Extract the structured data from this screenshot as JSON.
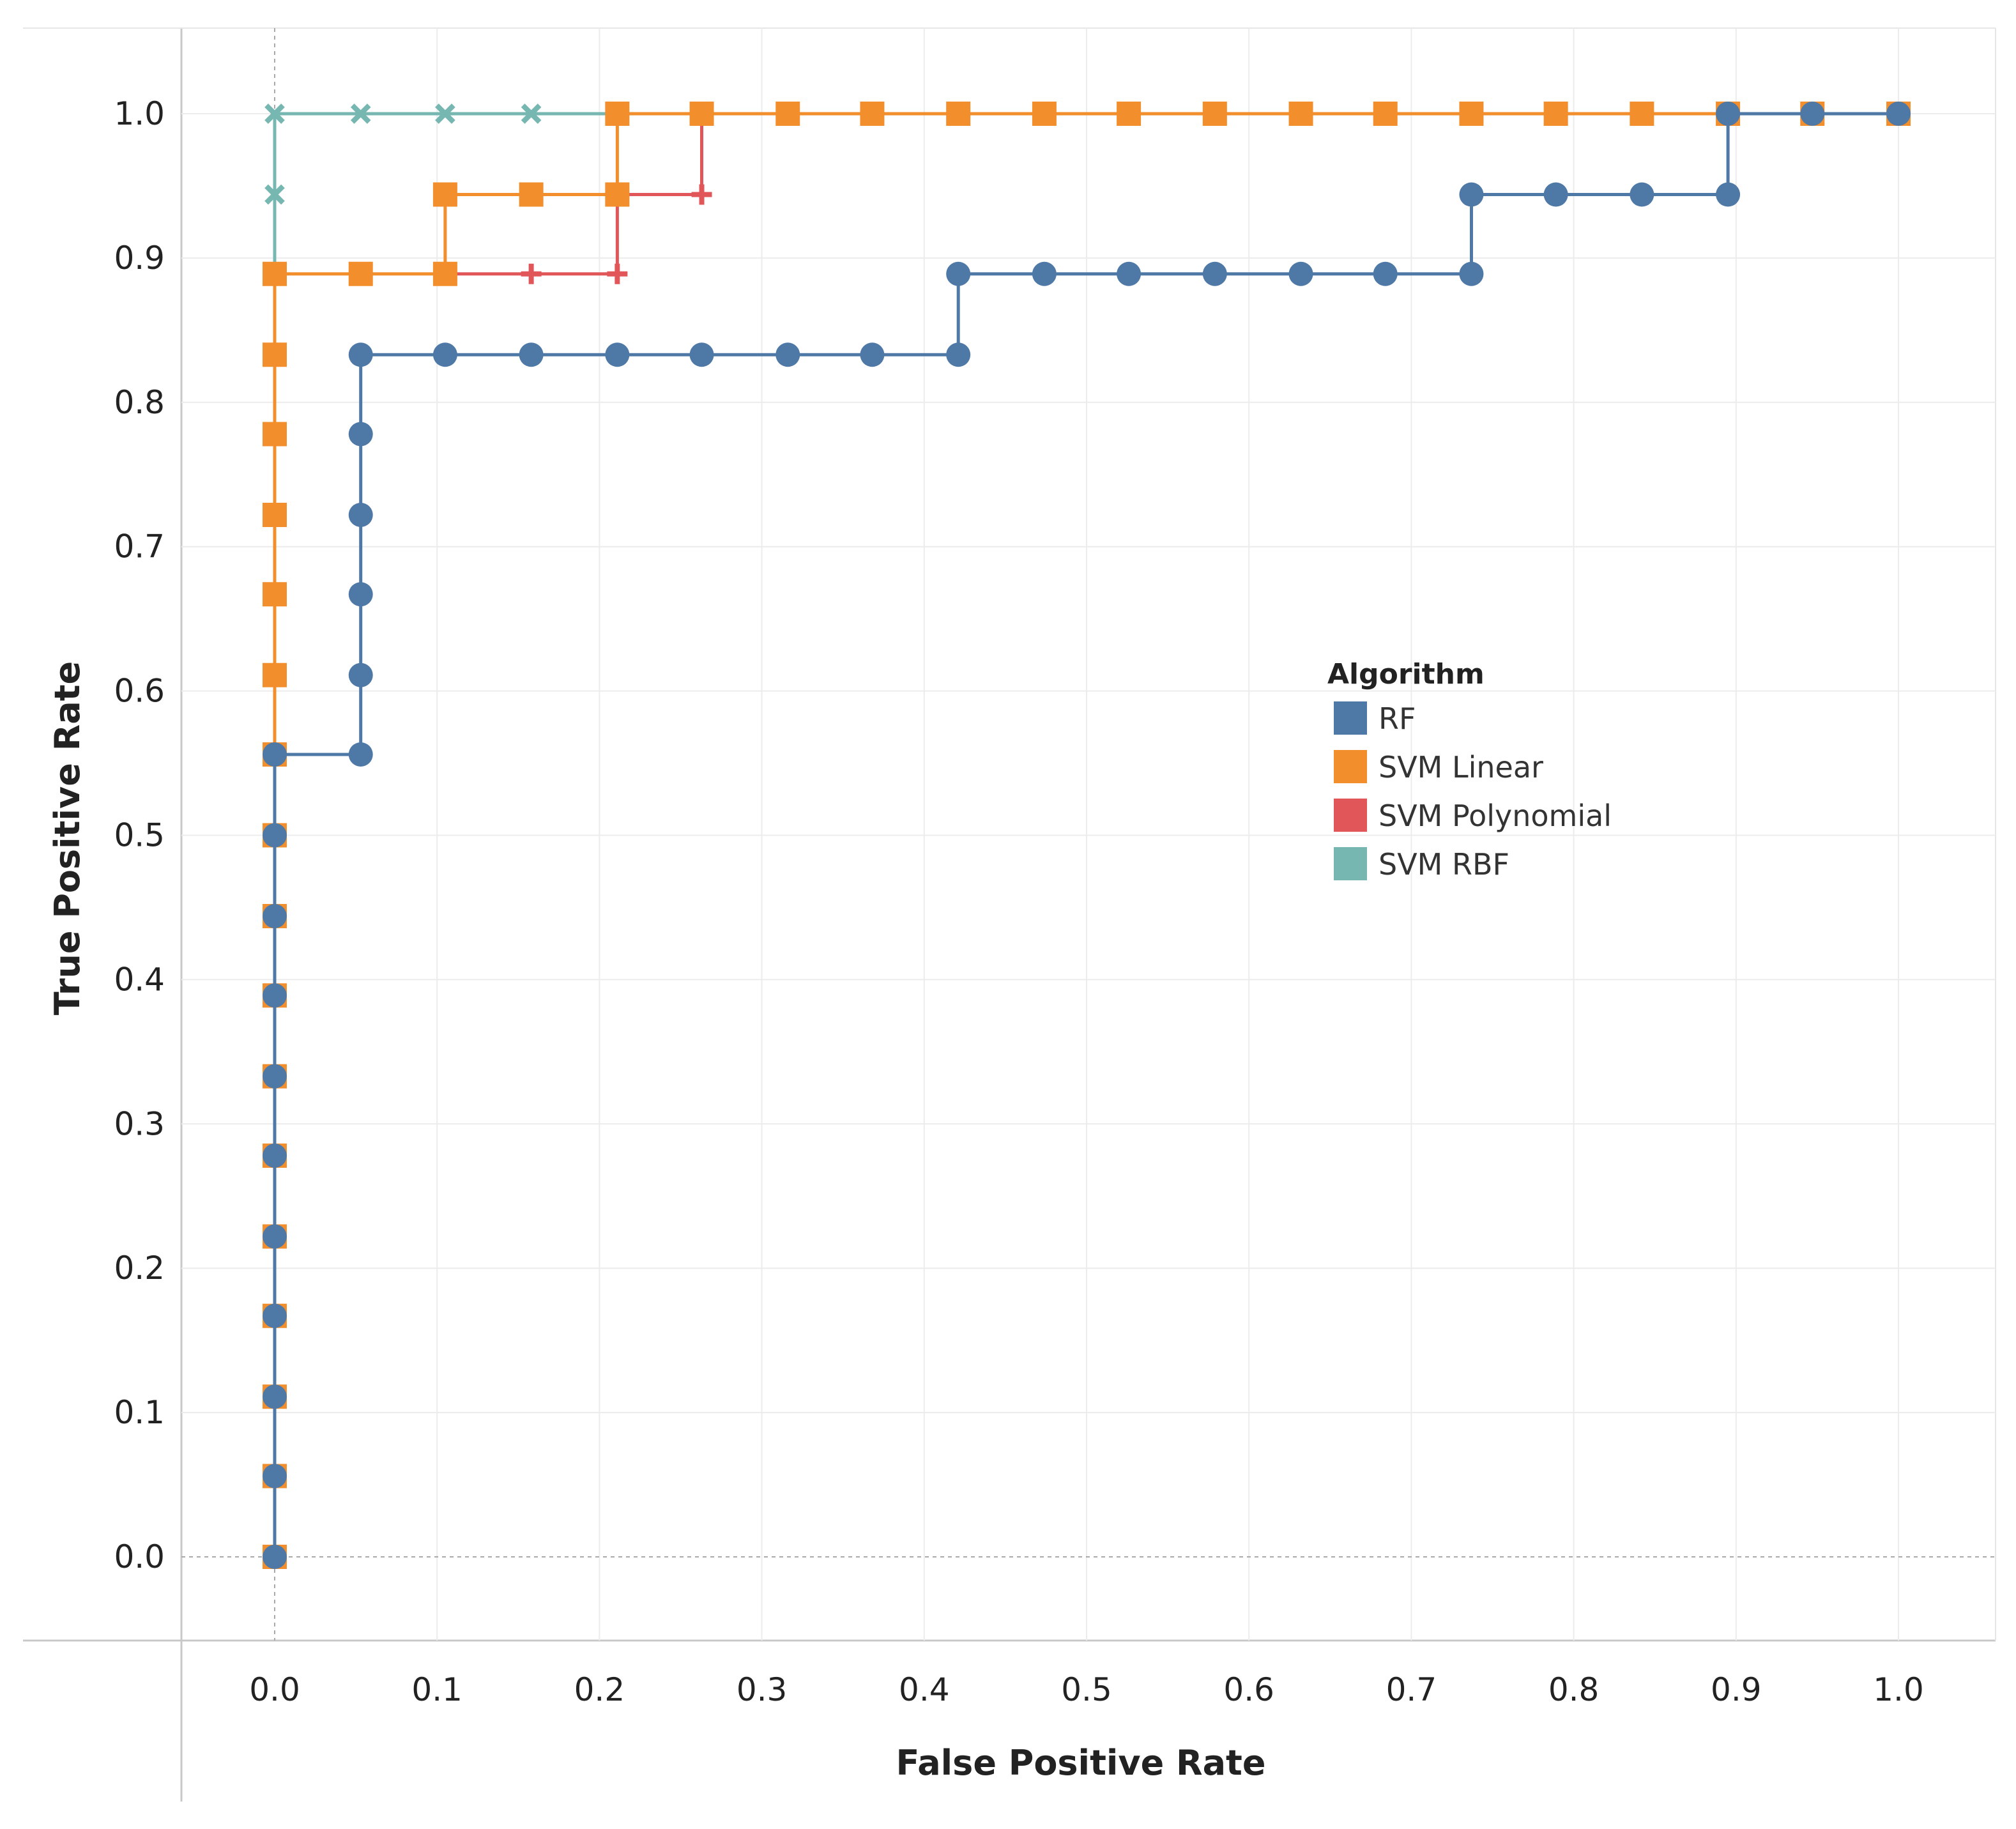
{
  "chart_data": {
    "type": "line",
    "title": "",
    "xlabel": "False Positive Rate",
    "ylabel": "True Positive Rate",
    "xlim": [
      -0.115,
      1.0
    ],
    "ylim": [
      -0.1,
      1.055
    ],
    "xticks": [
      "0.0",
      "0.1",
      "0.2",
      "0.3",
      "0.4",
      "0.5",
      "0.6",
      "0.7",
      "0.8",
      "0.9",
      "1.0"
    ],
    "yticks": [
      "0.0",
      "0.1",
      "0.2",
      "0.3",
      "0.4",
      "0.5",
      "0.6",
      "0.7",
      "0.8",
      "0.9",
      "1.0"
    ],
    "grid": true,
    "legend": {
      "title": "Algorithm",
      "position": "right-center"
    },
    "series": [
      {
        "name": "RF",
        "color": "#4E79A7",
        "marker": "circle",
        "points": [
          [
            0.0,
            0.0
          ],
          [
            0.0,
            0.056
          ],
          [
            0.0,
            0.111
          ],
          [
            0.0,
            0.167
          ],
          [
            0.0,
            0.222
          ],
          [
            0.0,
            0.278
          ],
          [
            0.0,
            0.333
          ],
          [
            0.0,
            0.389
          ],
          [
            0.0,
            0.444
          ],
          [
            0.0,
            0.5
          ],
          [
            0.0,
            0.556
          ],
          [
            0.053,
            0.556
          ],
          [
            0.053,
            0.611
          ],
          [
            0.053,
            0.667
          ],
          [
            0.053,
            0.722
          ],
          [
            0.053,
            0.778
          ],
          [
            0.053,
            0.833
          ],
          [
            0.105,
            0.833
          ],
          [
            0.158,
            0.833
          ],
          [
            0.211,
            0.833
          ],
          [
            0.263,
            0.833
          ],
          [
            0.316,
            0.833
          ],
          [
            0.368,
            0.833
          ],
          [
            0.421,
            0.833
          ],
          [
            0.421,
            0.889
          ],
          [
            0.474,
            0.889
          ],
          [
            0.526,
            0.889
          ],
          [
            0.579,
            0.889
          ],
          [
            0.632,
            0.889
          ],
          [
            0.684,
            0.889
          ],
          [
            0.737,
            0.889
          ],
          [
            0.737,
            0.944
          ],
          [
            0.789,
            0.944
          ],
          [
            0.842,
            0.944
          ],
          [
            0.895,
            0.944
          ],
          [
            0.895,
            1.0
          ],
          [
            0.947,
            1.0
          ],
          [
            1.0,
            1.0
          ]
        ]
      },
      {
        "name": "SVM Linear",
        "color": "#F28E2B",
        "marker": "square",
        "points": [
          [
            0.0,
            0.0
          ],
          [
            0.0,
            0.056
          ],
          [
            0.0,
            0.111
          ],
          [
            0.0,
            0.167
          ],
          [
            0.0,
            0.222
          ],
          [
            0.0,
            0.278
          ],
          [
            0.0,
            0.333
          ],
          [
            0.0,
            0.389
          ],
          [
            0.0,
            0.444
          ],
          [
            0.0,
            0.5
          ],
          [
            0.0,
            0.556
          ],
          [
            0.0,
            0.611
          ],
          [
            0.0,
            0.667
          ],
          [
            0.0,
            0.722
          ],
          [
            0.0,
            0.778
          ],
          [
            0.0,
            0.833
          ],
          [
            0.0,
            0.889
          ],
          [
            0.053,
            0.889
          ],
          [
            0.105,
            0.889
          ],
          [
            0.105,
            0.944
          ],
          [
            0.158,
            0.944
          ],
          [
            0.211,
            0.944
          ],
          [
            0.211,
            1.0
          ],
          [
            0.263,
            1.0
          ],
          [
            0.316,
            1.0
          ],
          [
            0.368,
            1.0
          ],
          [
            0.421,
            1.0
          ],
          [
            0.474,
            1.0
          ],
          [
            0.526,
            1.0
          ],
          [
            0.579,
            1.0
          ],
          [
            0.632,
            1.0
          ],
          [
            0.684,
            1.0
          ],
          [
            0.737,
            1.0
          ],
          [
            0.789,
            1.0
          ],
          [
            0.842,
            1.0
          ],
          [
            0.895,
            1.0
          ],
          [
            0.947,
            1.0
          ],
          [
            1.0,
            1.0
          ]
        ]
      },
      {
        "name": "SVM Polynomial",
        "color": "#E15759",
        "marker": "plus",
        "points": [
          [
            0.105,
            0.889
          ],
          [
            0.158,
            0.889
          ],
          [
            0.211,
            0.889
          ],
          [
            0.211,
            0.944
          ],
          [
            0.263,
            0.944
          ],
          [
            0.263,
            1.0
          ]
        ]
      },
      {
        "name": "SVM RBF",
        "color": "#76B7B2",
        "marker": "cross",
        "points": [
          [
            0.0,
            0.889
          ],
          [
            0.0,
            0.944
          ],
          [
            0.0,
            1.0
          ],
          [
            0.053,
            1.0
          ],
          [
            0.105,
            1.0
          ],
          [
            0.158,
            1.0
          ],
          [
            0.211,
            1.0
          ]
        ]
      }
    ]
  }
}
